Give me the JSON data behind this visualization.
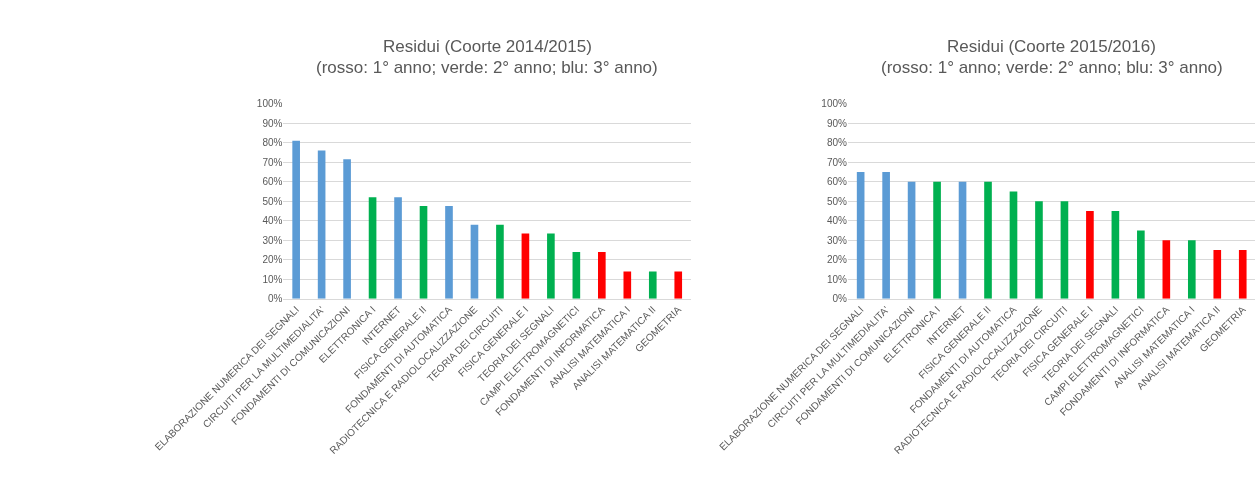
{
  "chart_data": [
    {
      "type": "bar",
      "title": "Residui (Coorte 2014/2015)",
      "subtitle": "(rosso: 1° anno; verde: 2° anno; blu: 3° anno)",
      "categories": [
        "ELABORAZIONE NUMERICA DEI SEGNALI",
        "CIRCUITI PER LA MULTIMEDIALITA'",
        "FONDAMENTI DI COMUNICAZIONI",
        "ELETTRONICA I",
        "INTERNET",
        "FISICA GENERALE II",
        "FONDAMENTI DI AUTOMATICA",
        "RADIOTECNICA E RADIOLOCALIZZAZIONE",
        "TEORIA DEI CIRCUITI",
        "FISICA GENERALE I",
        "TEORIA DEI SEGNALI",
        "CAMPI ELETTROMAGNETICI",
        "FONDAMENTI DI INFORMATICA",
        "ANALISI MATEMATICA I",
        "ANALISI MATEMATICA II",
        "GEOMETRIA"
      ],
      "values": [
        81,
        76,
        71.5,
        52,
        52,
        47.5,
        47.5,
        38,
        38,
        33.5,
        33.5,
        24,
        24,
        14,
        14,
        14
      ],
      "colors": [
        "#5b9bd5",
        "#5b9bd5",
        "#5b9bd5",
        "#00b050",
        "#5b9bd5",
        "#00b050",
        "#5b9bd5",
        "#5b9bd5",
        "#00b050",
        "#ff0000",
        "#00b050",
        "#00b050",
        "#ff0000",
        "#ff0000",
        "#00b050",
        "#ff0000"
      ],
      "ylim": [
        0,
        100
      ],
      "yticks": [
        {
          "value": 0,
          "label": "0%"
        },
        {
          "value": 10,
          "label": "10%"
        },
        {
          "value": 20,
          "label": "20%"
        },
        {
          "value": 30,
          "label": "30%"
        },
        {
          "value": 40,
          "label": "40%"
        },
        {
          "value": 50,
          "label": "50%"
        },
        {
          "value": 60,
          "label": "60%"
        },
        {
          "value": 70,
          "label": "70%"
        },
        {
          "value": 80,
          "label": "80%"
        },
        {
          "value": 90,
          "label": "90%"
        },
        {
          "value": 100,
          "label": "100%"
        }
      ],
      "grid": "y"
    },
    {
      "type": "bar",
      "title": "Residui (Coorte 2015/2016)",
      "subtitle": "(rosso: 1° anno; verde: 2° anno; blu: 3° anno)",
      "categories": [
        "ELABORAZIONE NUMERICA DEI SEGNALI",
        "CIRCUITI PER LA MULTIMEDIALITA'",
        "FONDAMENTI DI COMUNICAZIONI",
        "ELETTRONICA I",
        "INTERNET",
        "FISICA GENERALE II",
        "FONDAMENTI DI AUTOMATICA",
        "RADIOTECNICA E RADIOLOCALIZZAZIONE",
        "TEORIA DEI CIRCUITI",
        "FISICA GENERALE I",
        "TEORIA DEI SEGNALI",
        "CAMPI ELETTROMAGNETICI",
        "FONDAMENTI DI INFORMATICA",
        "ANALISI MATEMATICA I",
        "ANALISI MATEMATICA II",
        "GEOMETRIA"
      ],
      "values": [
        65,
        65,
        60,
        60,
        60,
        60,
        55,
        50,
        50,
        45,
        45,
        35,
        30,
        30,
        25,
        25
      ],
      "colors": [
        "#5b9bd5",
        "#5b9bd5",
        "#5b9bd5",
        "#00b050",
        "#5b9bd5",
        "#00b050",
        "#00b050",
        "#00b050",
        "#00b050",
        "#ff0000",
        "#00b050",
        "#00b050",
        "#ff0000",
        "#00b050",
        "#ff0000",
        "#ff0000"
      ],
      "ylim": [
        0,
        100
      ],
      "yticks": [
        {
          "value": 0,
          "label": "0%"
        },
        {
          "value": 10,
          "label": "10%"
        },
        {
          "value": 20,
          "label": "20%"
        },
        {
          "value": 30,
          "label": "30%"
        },
        {
          "value": 40,
          "label": "40%"
        },
        {
          "value": 50,
          "label": "50%"
        },
        {
          "value": 60,
          "label": "60%"
        },
        {
          "value": 70,
          "label": "70%"
        },
        {
          "value": 80,
          "label": "80%"
        },
        {
          "value": 90,
          "label": "90%"
        },
        {
          "value": 100,
          "label": "100%"
        }
      ],
      "grid": "y"
    }
  ]
}
